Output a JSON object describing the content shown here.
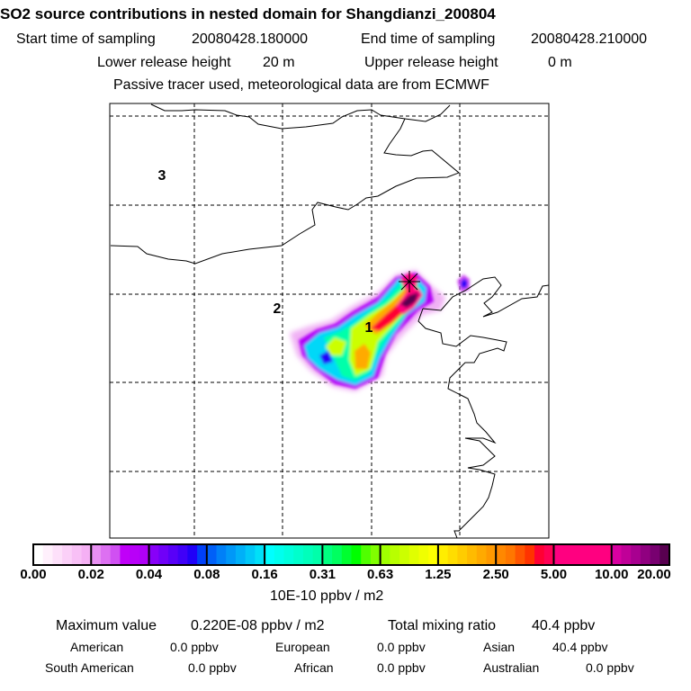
{
  "header": {
    "title": "SO2 source contributions in nested domain for Shangdianzi_200804",
    "start_label": "Start time of sampling",
    "start_value": "20080428.180000",
    "end_label": "End time of sampling",
    "end_value": "20080428.210000",
    "lower_label": "Lower release height",
    "lower_value": "20 m",
    "upper_label": "Upper release height",
    "upper_value": "0 m",
    "note": "Passive tracer used, meteorological data are from ECMWF"
  },
  "map": {
    "region_labels": [
      "1",
      "2",
      "3"
    ],
    "receptor_icon": "asterisk-icon"
  },
  "colorbar": {
    "ticks": [
      "0.00",
      "0.02",
      "0.04",
      "0.08",
      "0.16",
      "0.31",
      "0.63",
      "1.25",
      "2.50",
      "5.00",
      "10.00",
      "20.00"
    ],
    "unit": "10E-10 ppbv / m2",
    "colors": [
      [
        "#ffffff",
        "#fff0fc",
        "#fde0fa",
        "#fbd0f8",
        "#f8c0f6",
        "#f5b0f4"
      ],
      [
        "#e890f2",
        "#dd70f2",
        "#d050f2",
        "#c000f8",
        "#b800f8",
        "#b000f8"
      ],
      [
        "#8800f8",
        "#7000f8",
        "#5800f8",
        "#4000f8",
        "#2000f8",
        "#0040f8"
      ],
      [
        "#0060f8",
        "#0080f8",
        "#0098f8",
        "#00b0f8",
        "#00c8f8",
        "#00e0f8"
      ],
      [
        "#00ffff",
        "#00ffee",
        "#00ffdd",
        "#00ffcc",
        "#00ffbb",
        "#00ffaa"
      ],
      [
        "#00ff80",
        "#00ff60",
        "#00ff30",
        "#00ff00",
        "#50ff00",
        "#80ff00"
      ],
      [
        "#a0ff00",
        "#b8ff00",
        "#ccff00",
        "#e0ff00",
        "#f0ff00",
        "#ffff00"
      ],
      [
        "#ffee00",
        "#ffdd00",
        "#ffcc00",
        "#ffbb00",
        "#ffaa00",
        "#ff9900"
      ],
      [
        "#ff8800",
        "#ff7700",
        "#ff5500",
        "#ff3300",
        "#ff0033",
        "#ff0055"
      ],
      [
        "#ff0080",
        "#ff0080",
        "#ff0080",
        "#ff0080",
        "#ff0080",
        "#ff0080"
      ],
      [
        "#d800a0",
        "#c00098",
        "#a80090",
        "#900080",
        "#780070",
        "#580050"
      ]
    ]
  },
  "footer": {
    "max_label": "Maximum value",
    "max_value": "0.220E-08 ppbv / m2",
    "total_label": "Total mixing ratio",
    "total_value": "40.4 ppbv",
    "regions": [
      {
        "label": "American",
        "value": "0.0 ppbv"
      },
      {
        "label": "European",
        "value": "0.0 ppbv"
      },
      {
        "label": "Asian",
        "value": "40.4 ppbv"
      },
      {
        "label": "South American",
        "value": "0.0 ppbv"
      },
      {
        "label": "African",
        "value": "0.0 ppbv"
      },
      {
        "label": "Australian",
        "value": "0.0 ppbv"
      }
    ]
  }
}
